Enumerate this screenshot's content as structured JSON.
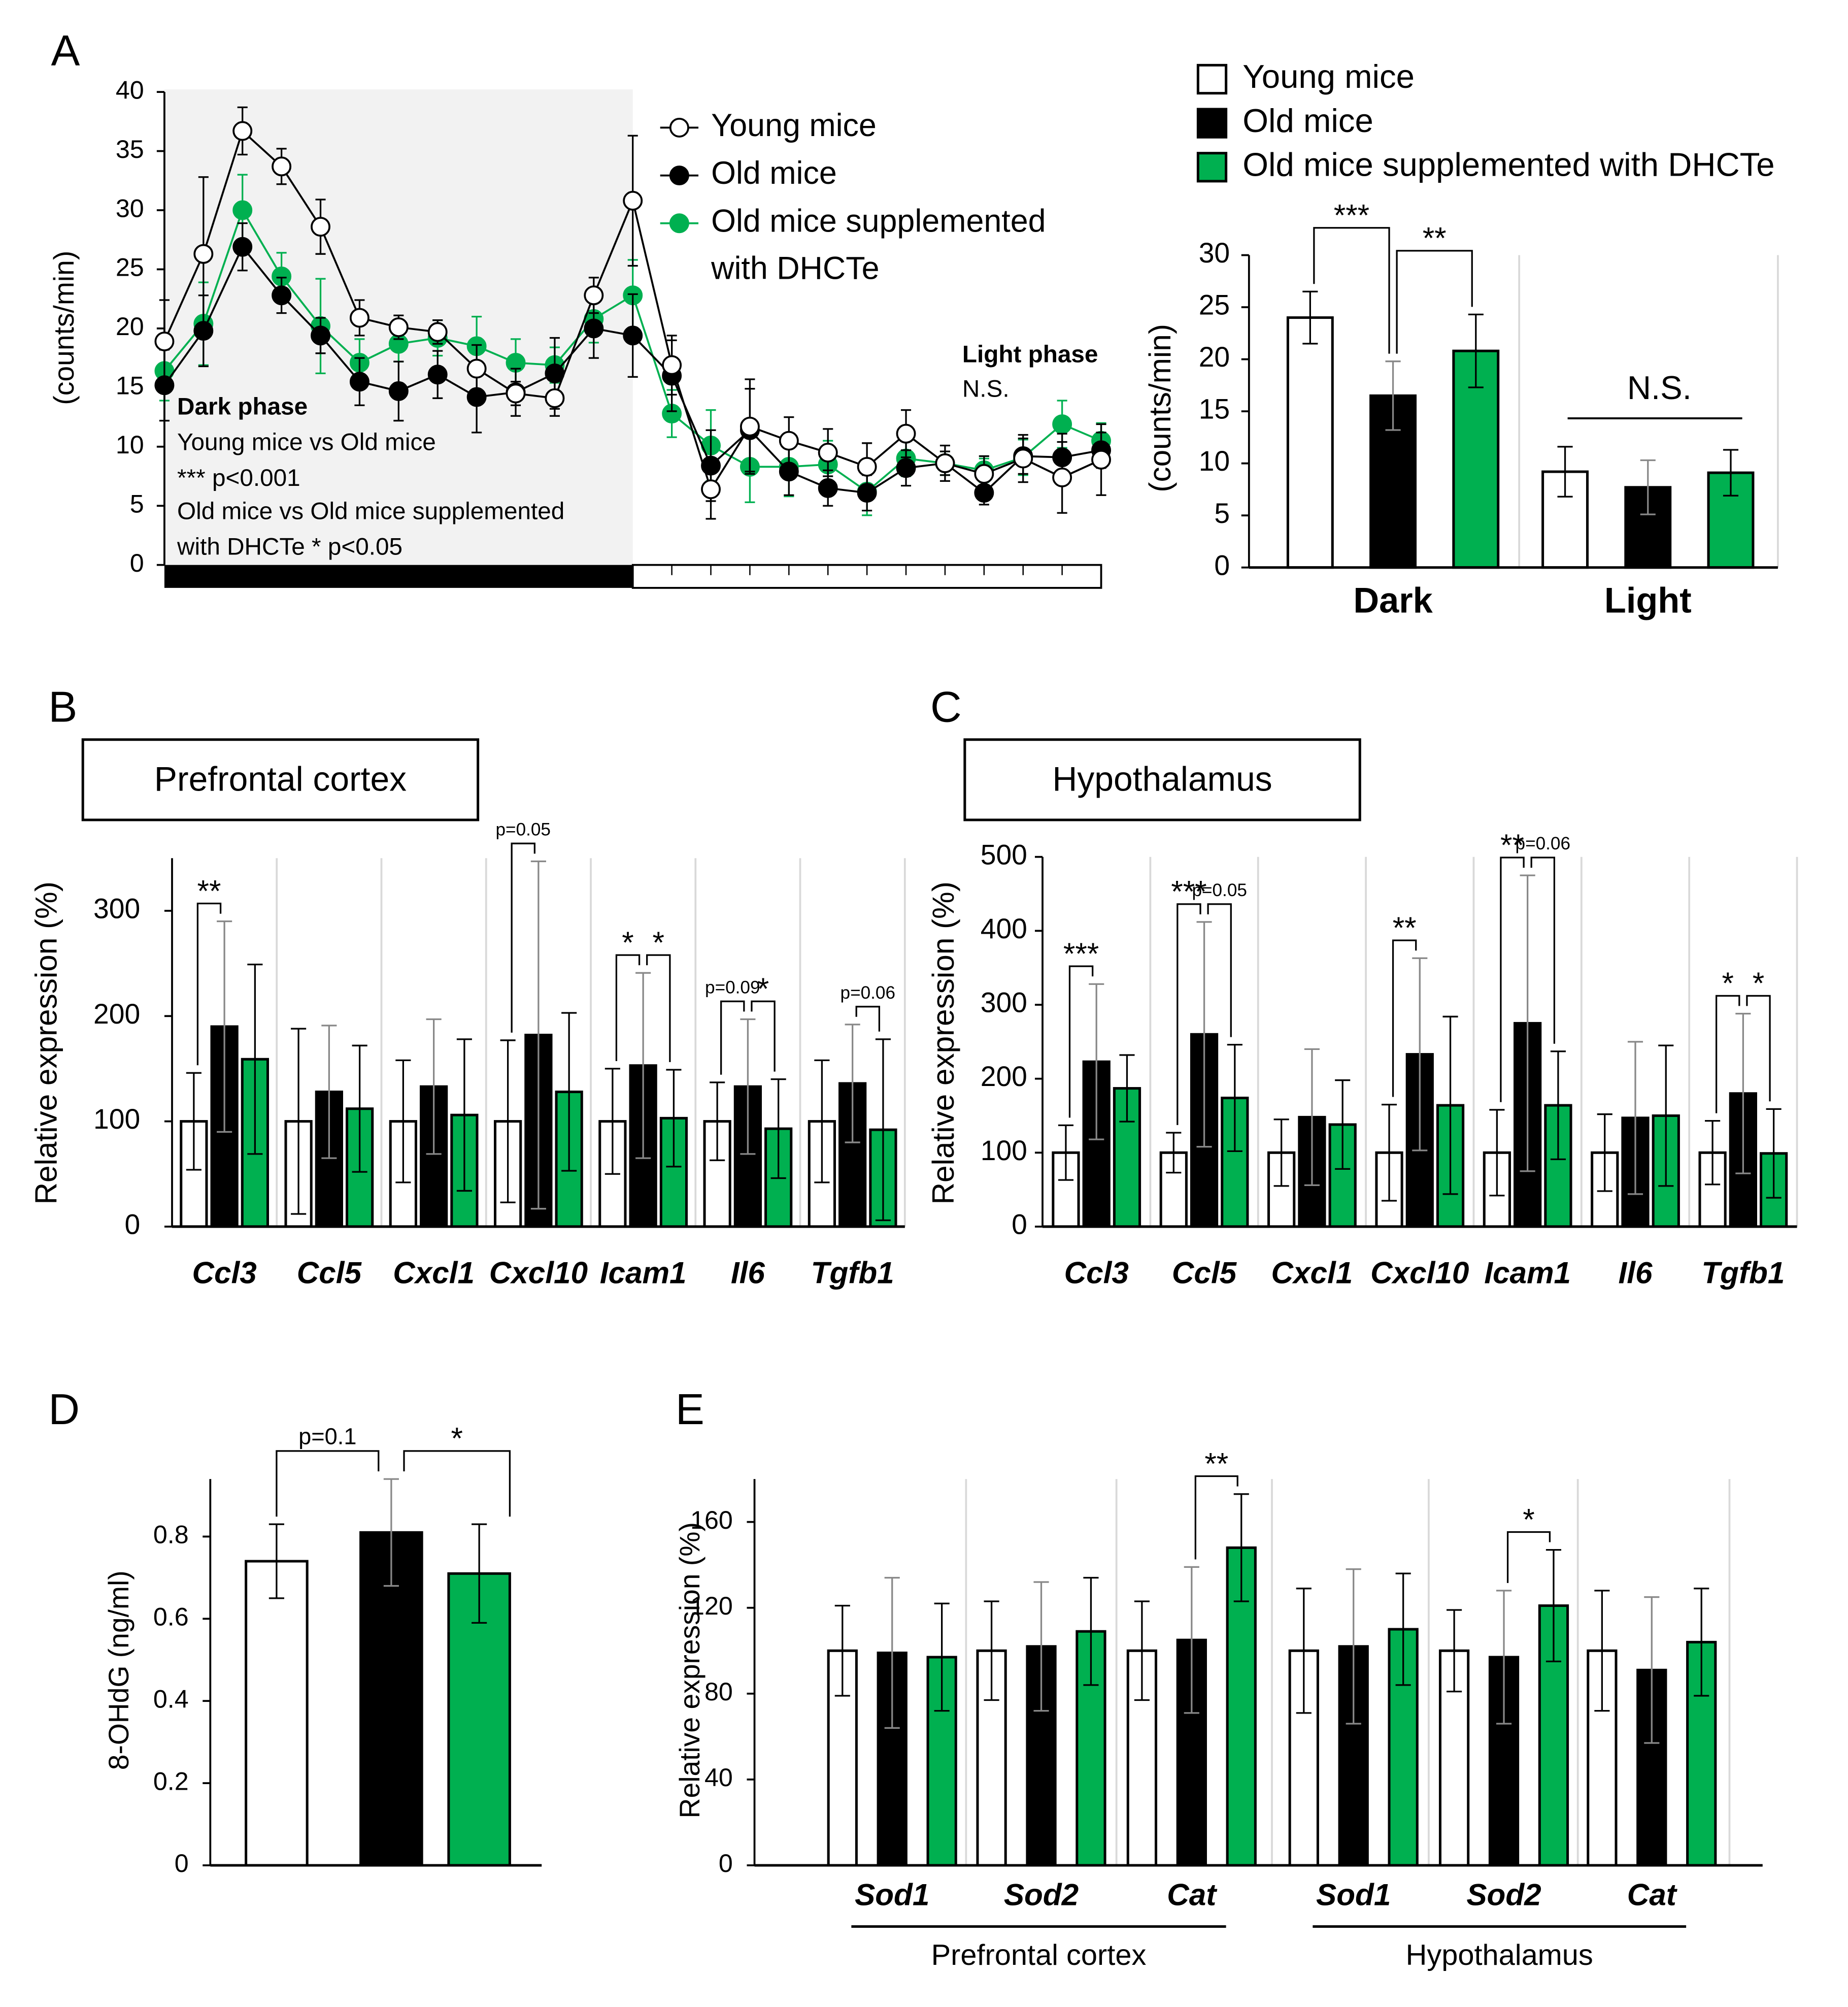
{
  "panels": [
    "A",
    "B",
    "C",
    "D",
    "E"
  ],
  "chart_data": [
    {
      "type": "line",
      "y_label": "(counts/min)",
      "categories": [
        null,
        null,
        null,
        null,
        null,
        null,
        null,
        null,
        null,
        null,
        null,
        null,
        null,
        null,
        null,
        null,
        null,
        null,
        null,
        null,
        null,
        null,
        null,
        null,
        null
      ],
      "series": [
        {
          "name": "Young mice",
          "color": "#ffffff",
          "values": [
            18.9,
            26.3,
            36.7,
            33.7,
            28.6,
            20.9,
            20.1,
            19.7,
            16.6,
            14.5,
            14.1,
            22.8,
            30.8,
            16.9,
            6.4,
            11.7,
            10.5,
            9.5,
            8.3,
            11.1,
            8.6,
            7.7,
            9.0,
            7.4,
            8.9
          ],
          "errors": [
            3.5,
            6.5,
            2,
            1.5,
            2.3,
            1.5,
            1,
            1,
            2,
            1,
            1.5,
            1.5,
            5.5,
            2.5,
            2.5,
            4,
            2,
            2,
            2,
            2,
            1.5,
            1.5,
            2,
            3,
            3
          ]
        },
        {
          "name": "Old mice",
          "color": "#000000",
          "values": [
            15.2,
            19.8,
            26.9,
            22.8,
            19.4,
            15.5,
            14.7,
            16.1,
            14.2,
            14.6,
            16.2,
            20.0,
            19.4,
            16.0,
            8.4,
            11.4,
            7.9,
            6.5,
            6.1,
            8.2,
            8.6,
            6.1,
            9.2,
            9.1,
            9.7
          ],
          "errors": [
            3,
            3,
            2,
            1.5,
            1.5,
            2,
            2.5,
            2,
            3,
            2,
            3,
            2.5,
            3.5,
            3,
            3,
            3.5,
            2,
            1.5,
            1.5,
            1.5,
            1,
            1,
            1.5,
            2,
            1.5
          ]
        },
        {
          "name": "Old mice supplemented with DHCTe",
          "color": "#00b050",
          "values": [
            16.4,
            20.4,
            30.0,
            24.4,
            20.2,
            17.1,
            18.7,
            19.2,
            18.5,
            17.1,
            16.9,
            20.8,
            22.8,
            12.8,
            10.1,
            8.3,
            8.3,
            8.5,
            6.2,
            9.0,
            8.6,
            8.0,
            9.1,
            11.9,
            10.5
          ],
          "errors": [
            2.5,
            3.5,
            3,
            2,
            4,
            2,
            1.5,
            1.5,
            2.5,
            2,
            1.5,
            2,
            3,
            2,
            3,
            3,
            2.5,
            2,
            2,
            1.5,
            1,
            1,
            1.5,
            2,
            1.5
          ]
        }
      ],
      "ylim": [
        0,
        40
      ],
      "yticks": [
        0,
        5,
        10,
        15,
        20,
        25,
        30,
        35,
        40
      ],
      "annotations": [
        "Dark phase",
        "Young mice vs Old mice",
        "*** p<0.001",
        "Old mice vs Old mice supplemented",
        "with DHCTe * p<0.05",
        "Light phase",
        "N.S."
      ]
    },
    {
      "type": "bar",
      "y_label": "(counts/min)",
      "categories": [
        "Dark",
        "Light"
      ],
      "series": [
        {
          "name": "Young mice",
          "color": "#ffffff",
          "values": [
            24.0,
            9.2
          ],
          "errors": [
            2.5,
            2.4
          ]
        },
        {
          "name": "Old mice",
          "color": "#000000",
          "values": [
            16.5,
            7.7
          ],
          "errors": [
            3.3,
            2.6
          ]
        },
        {
          "name": "Old mice supplemented with DHCTe",
          "color": "#00b050",
          "values": [
            20.8,
            9.1
          ],
          "errors": [
            3.5,
            2.2
          ]
        }
      ],
      "ylim": [
        0,
        30
      ],
      "yticks": [
        0,
        5,
        10,
        15,
        20,
        25,
        30
      ],
      "annotations": [
        "***",
        "**",
        "N.S."
      ]
    },
    {
      "type": "bar",
      "title": "Prefrontal cortex",
      "y_label": "Relative expression (%)",
      "categories": [
        "Ccl3",
        "Ccl5",
        "Cxcl1",
        "Cxcl10",
        "Icam1",
        "Il6",
        "Tgfb1"
      ],
      "series": [
        {
          "color": "#ffffff",
          "values": [
            100,
            100,
            100,
            100,
            100,
            100,
            100
          ],
          "errors": [
            46,
            88,
            58,
            77,
            50,
            37,
            58
          ]
        },
        {
          "color": "#000000",
          "values": [
            190,
            128,
            133,
            182,
            153,
            133,
            136
          ],
          "errors": [
            100,
            63,
            64,
            165,
            88,
            64,
            56
          ]
        },
        {
          "color": "#00b050",
          "values": [
            159,
            112,
            106,
            128,
            103,
            93,
            92
          ],
          "errors": [
            90,
            60,
            72,
            75,
            46,
            47,
            86
          ]
        }
      ],
      "ylim": [
        0,
        350
      ],
      "yticks": [
        0,
        100,
        200,
        300
      ],
      "annotations": [
        "**",
        "p=0.05",
        "*",
        "*",
        "p=0.09",
        "*",
        "p=0.06"
      ]
    },
    {
      "type": "bar",
      "title": "Hypothalamus",
      "y_label": "Relative expression (%)",
      "categories": [
        "Ccl3",
        "Ccl5",
        "Cxcl1",
        "Cxcl10",
        "Icam1",
        "Il6",
        "Tgfb1"
      ],
      "series": [
        {
          "color": "#ffffff",
          "values": [
            100,
            100,
            100,
            100,
            100,
            100,
            100
          ],
          "errors": [
            37,
            27,
            45,
            65,
            58,
            52,
            43
          ]
        },
        {
          "color": "#000000",
          "values": [
            223,
            260,
            148,
            233,
            275,
            147,
            180
          ],
          "errors": [
            105,
            152,
            92,
            130,
            200,
            103,
            108
          ]
        },
        {
          "color": "#00b050",
          "values": [
            187,
            174,
            138,
            164,
            164,
            150,
            99
          ],
          "errors": [
            45,
            72,
            60,
            120,
            73,
            95,
            60
          ]
        }
      ],
      "ylim": [
        0,
        500
      ],
      "yticks": [
        0,
        100,
        200,
        300,
        400,
        500
      ],
      "annotations": [
        "***",
        "***",
        "p=0.05",
        "**",
        "**",
        "p=0.06",
        "*",
        "*"
      ]
    },
    {
      "type": "bar",
      "y_label": "8-OHdG (ng/ml)",
      "values": [
        0.74,
        0.81,
        0.71
      ],
      "errors": [
        0.09,
        0.13,
        0.12
      ],
      "colors": [
        "#ffffff",
        "#000000",
        "#00b050"
      ],
      "ylim": [
        0,
        0.94
      ],
      "yticks": [
        0,
        0.2,
        0.4,
        0.6,
        0.8
      ],
      "annotations": [
        "p=0.1",
        "*"
      ]
    },
    {
      "type": "bar",
      "y_label": "Relative expression (%)",
      "categories": [
        "Sod1",
        "Sod2",
        "Cat",
        "Sod1",
        "Sod2",
        "Cat"
      ],
      "group_labels": [
        "Prefrontal cortex",
        "Hypothalamus"
      ],
      "series": [
        {
          "color": "#ffffff",
          "values": [
            100,
            100,
            100,
            100,
            100,
            100
          ],
          "errors": [
            21,
            23,
            23,
            29,
            19,
            28
          ]
        },
        {
          "color": "#000000",
          "values": [
            99,
            102,
            105,
            102,
            97,
            91
          ],
          "errors": [
            35,
            30,
            34,
            36,
            31,
            34
          ]
        },
        {
          "color": "#00b050",
          "values": [
            97,
            109,
            148,
            110,
            121,
            104
          ],
          "errors": [
            25,
            25,
            25,
            26,
            26,
            25
          ]
        }
      ],
      "ylim": [
        0,
        180
      ],
      "yticks": [
        0,
        40,
        80,
        120,
        160
      ],
      "annotations": [
        "**",
        "*"
      ]
    }
  ]
}
